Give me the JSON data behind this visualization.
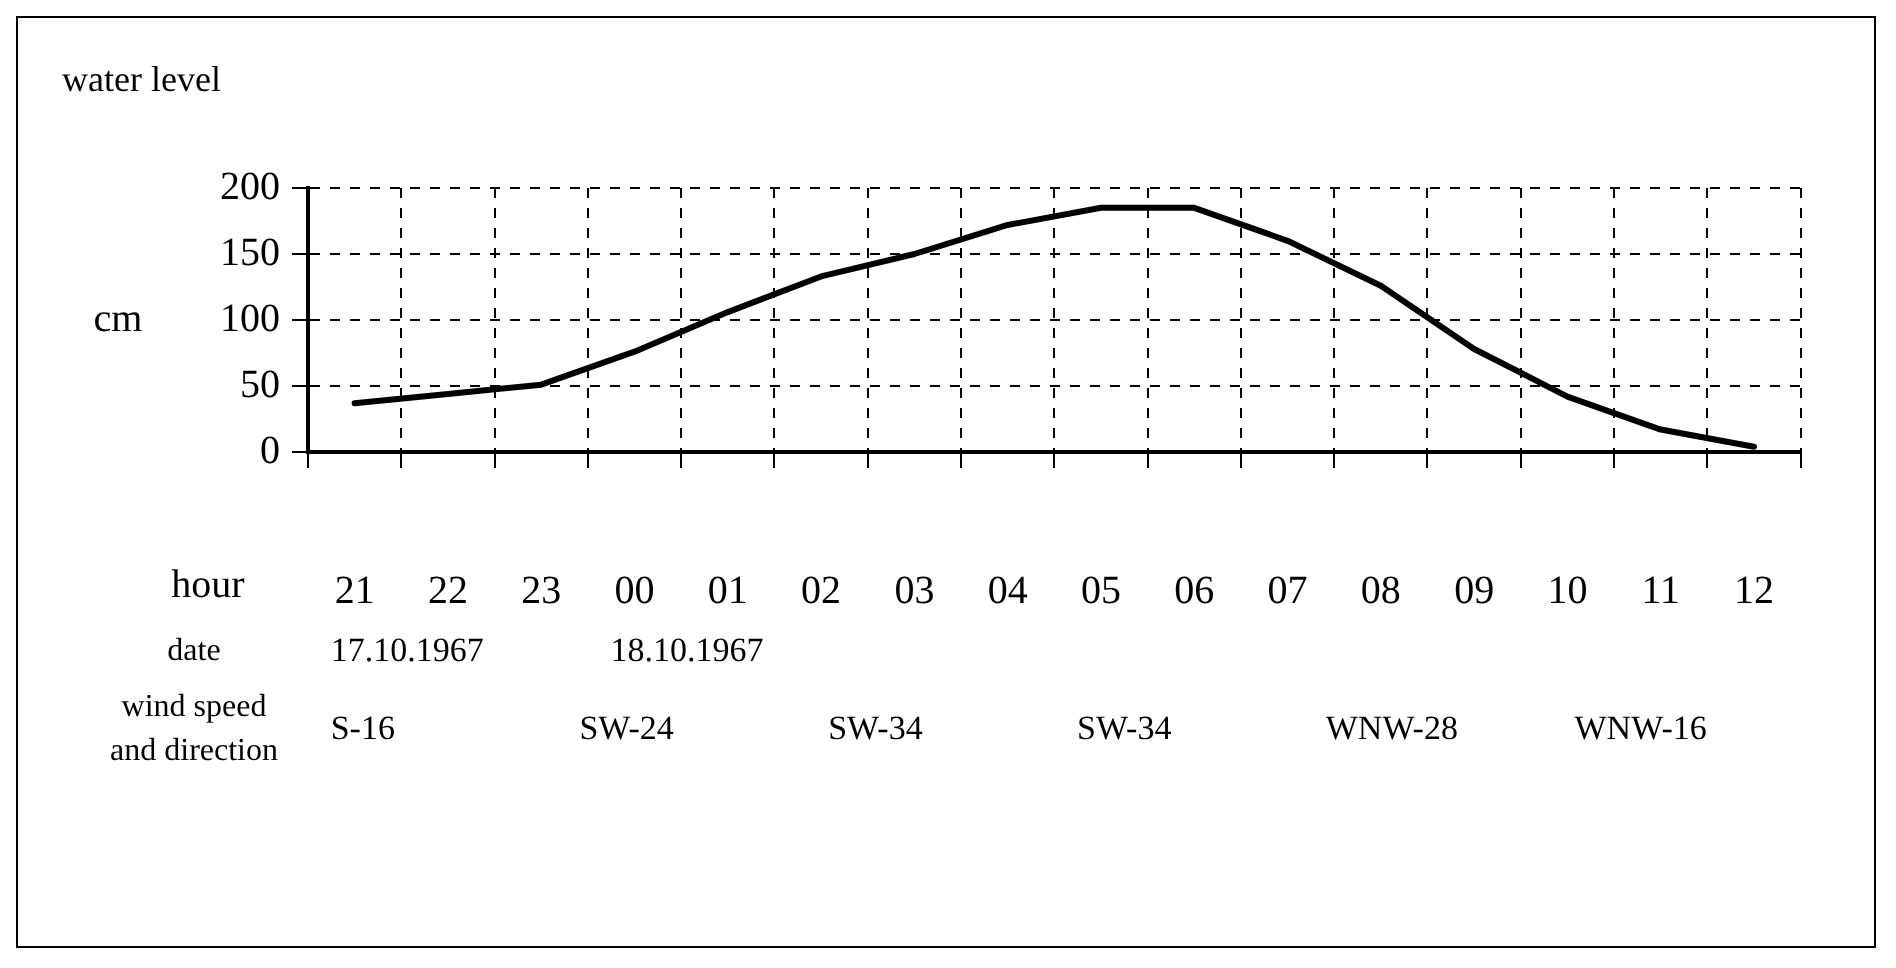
{
  "chart_data": {
    "type": "line",
    "title": "water level",
    "ylabel": "cm",
    "xlabel": "hour",
    "categories": [
      "21",
      "22",
      "23",
      "00",
      "01",
      "02",
      "03",
      "04",
      "05",
      "06",
      "07",
      "08",
      "09",
      "10",
      "11",
      "12"
    ],
    "series": [
      {
        "color": "#000000",
        "values": [
          37,
          44,
          51,
          76,
          106,
          133,
          150,
          172,
          185,
          185,
          160,
          126,
          78,
          42,
          17,
          4
        ]
      }
    ],
    "ylim": [
      0,
      200
    ],
    "yticks": [
      0,
      50,
      100,
      150,
      200
    ],
    "grid": true,
    "legend": false,
    "marker": "none",
    "line_style": "solid",
    "annotations": [
      "date",
      "17.10.1967",
      "18.10.1967",
      "wind speed and direction",
      "S-16",
      "SW-24",
      "SW-34",
      "SW-34",
      "WNW-28",
      "WNW-16"
    ]
  }
}
